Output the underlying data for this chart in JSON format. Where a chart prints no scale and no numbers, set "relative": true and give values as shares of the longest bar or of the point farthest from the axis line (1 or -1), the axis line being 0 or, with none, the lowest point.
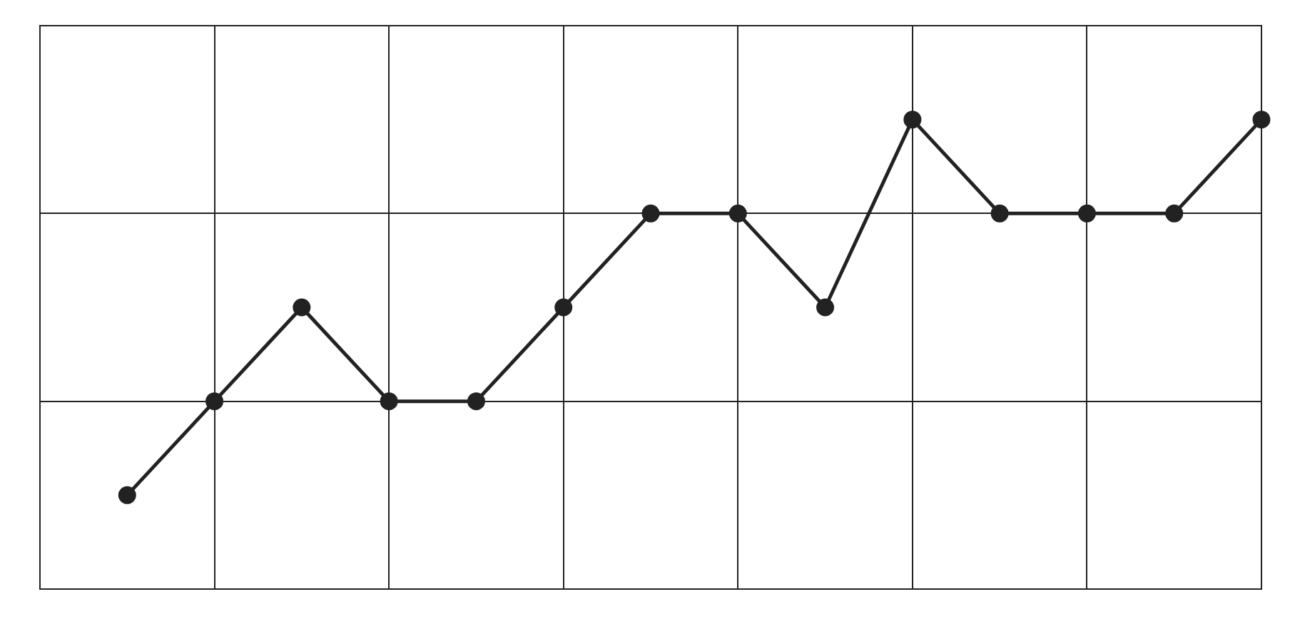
{
  "chart_data": {
    "type": "line",
    "relative": true,
    "categories": [
      null,
      null,
      null,
      null,
      null,
      null,
      null,
      null,
      null,
      null,
      null,
      null,
      null,
      null,
      null
    ],
    "series": [
      {
        "color": "#222222",
        "values": [
          null,
          0.2,
          0.4,
          0.6,
          0.4,
          0.4,
          0.6,
          0.8,
          0.8,
          0.6,
          1,
          0.8,
          0.8,
          0.8,
          1
        ]
      }
    ],
    "grid": true,
    "legend": false,
    "marker": "circle",
    "line_style": "solid"
  }
}
